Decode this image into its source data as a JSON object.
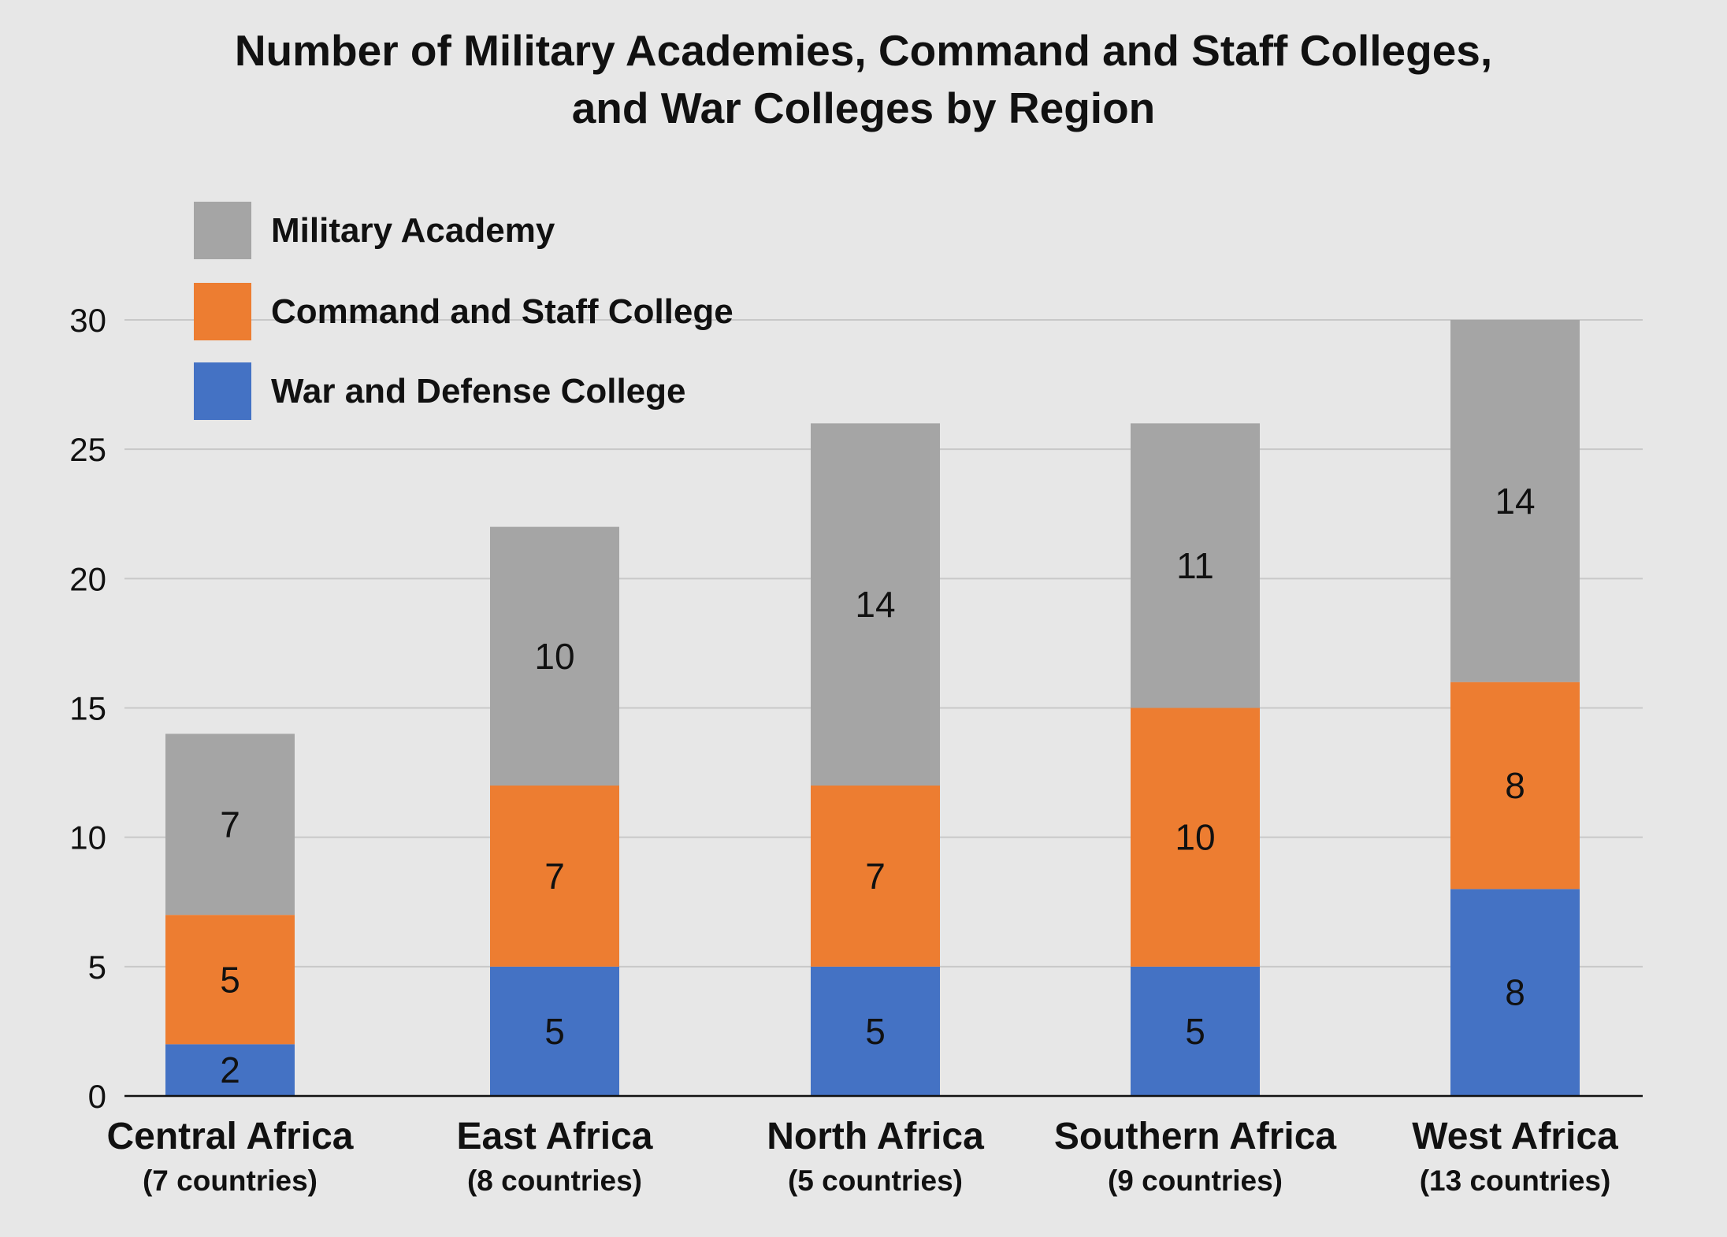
{
  "chart_data": {
    "type": "bar",
    "stacked": true,
    "title_lines": [
      "Number of Military Academies, Command and Staff Colleges,",
      "and War Colleges by Region"
    ],
    "categories": [
      {
        "name": "Central Africa",
        "sub": "(7 countries)"
      },
      {
        "name": "East Africa",
        "sub": "(8 countries)"
      },
      {
        "name": "North Africa",
        "sub": "(5 countries)"
      },
      {
        "name": "Southern Africa",
        "sub": "(9 countries)"
      },
      {
        "name": "West Africa",
        "sub": "(13 countries)"
      }
    ],
    "series": [
      {
        "name": "War and Defense College",
        "color": "#4472c4",
        "values": [
          2,
          5,
          5,
          5,
          8
        ]
      },
      {
        "name": "Command and Staff College",
        "color": "#ed7d31",
        "values": [
          5,
          7,
          7,
          10,
          8
        ]
      },
      {
        "name": "Military Academy",
        "color": "#a5a5a5",
        "values": [
          7,
          10,
          14,
          11,
          14
        ]
      }
    ],
    "legend_order": [
      "Military Academy",
      "Command and Staff College",
      "War and Defense College"
    ],
    "legend_placement": "top-left",
    "y_ticks": [
      0,
      5,
      10,
      15,
      20,
      25,
      30
    ],
    "ylim": [
      0,
      30
    ],
    "grid": true,
    "xlabel": "",
    "ylabel": ""
  }
}
